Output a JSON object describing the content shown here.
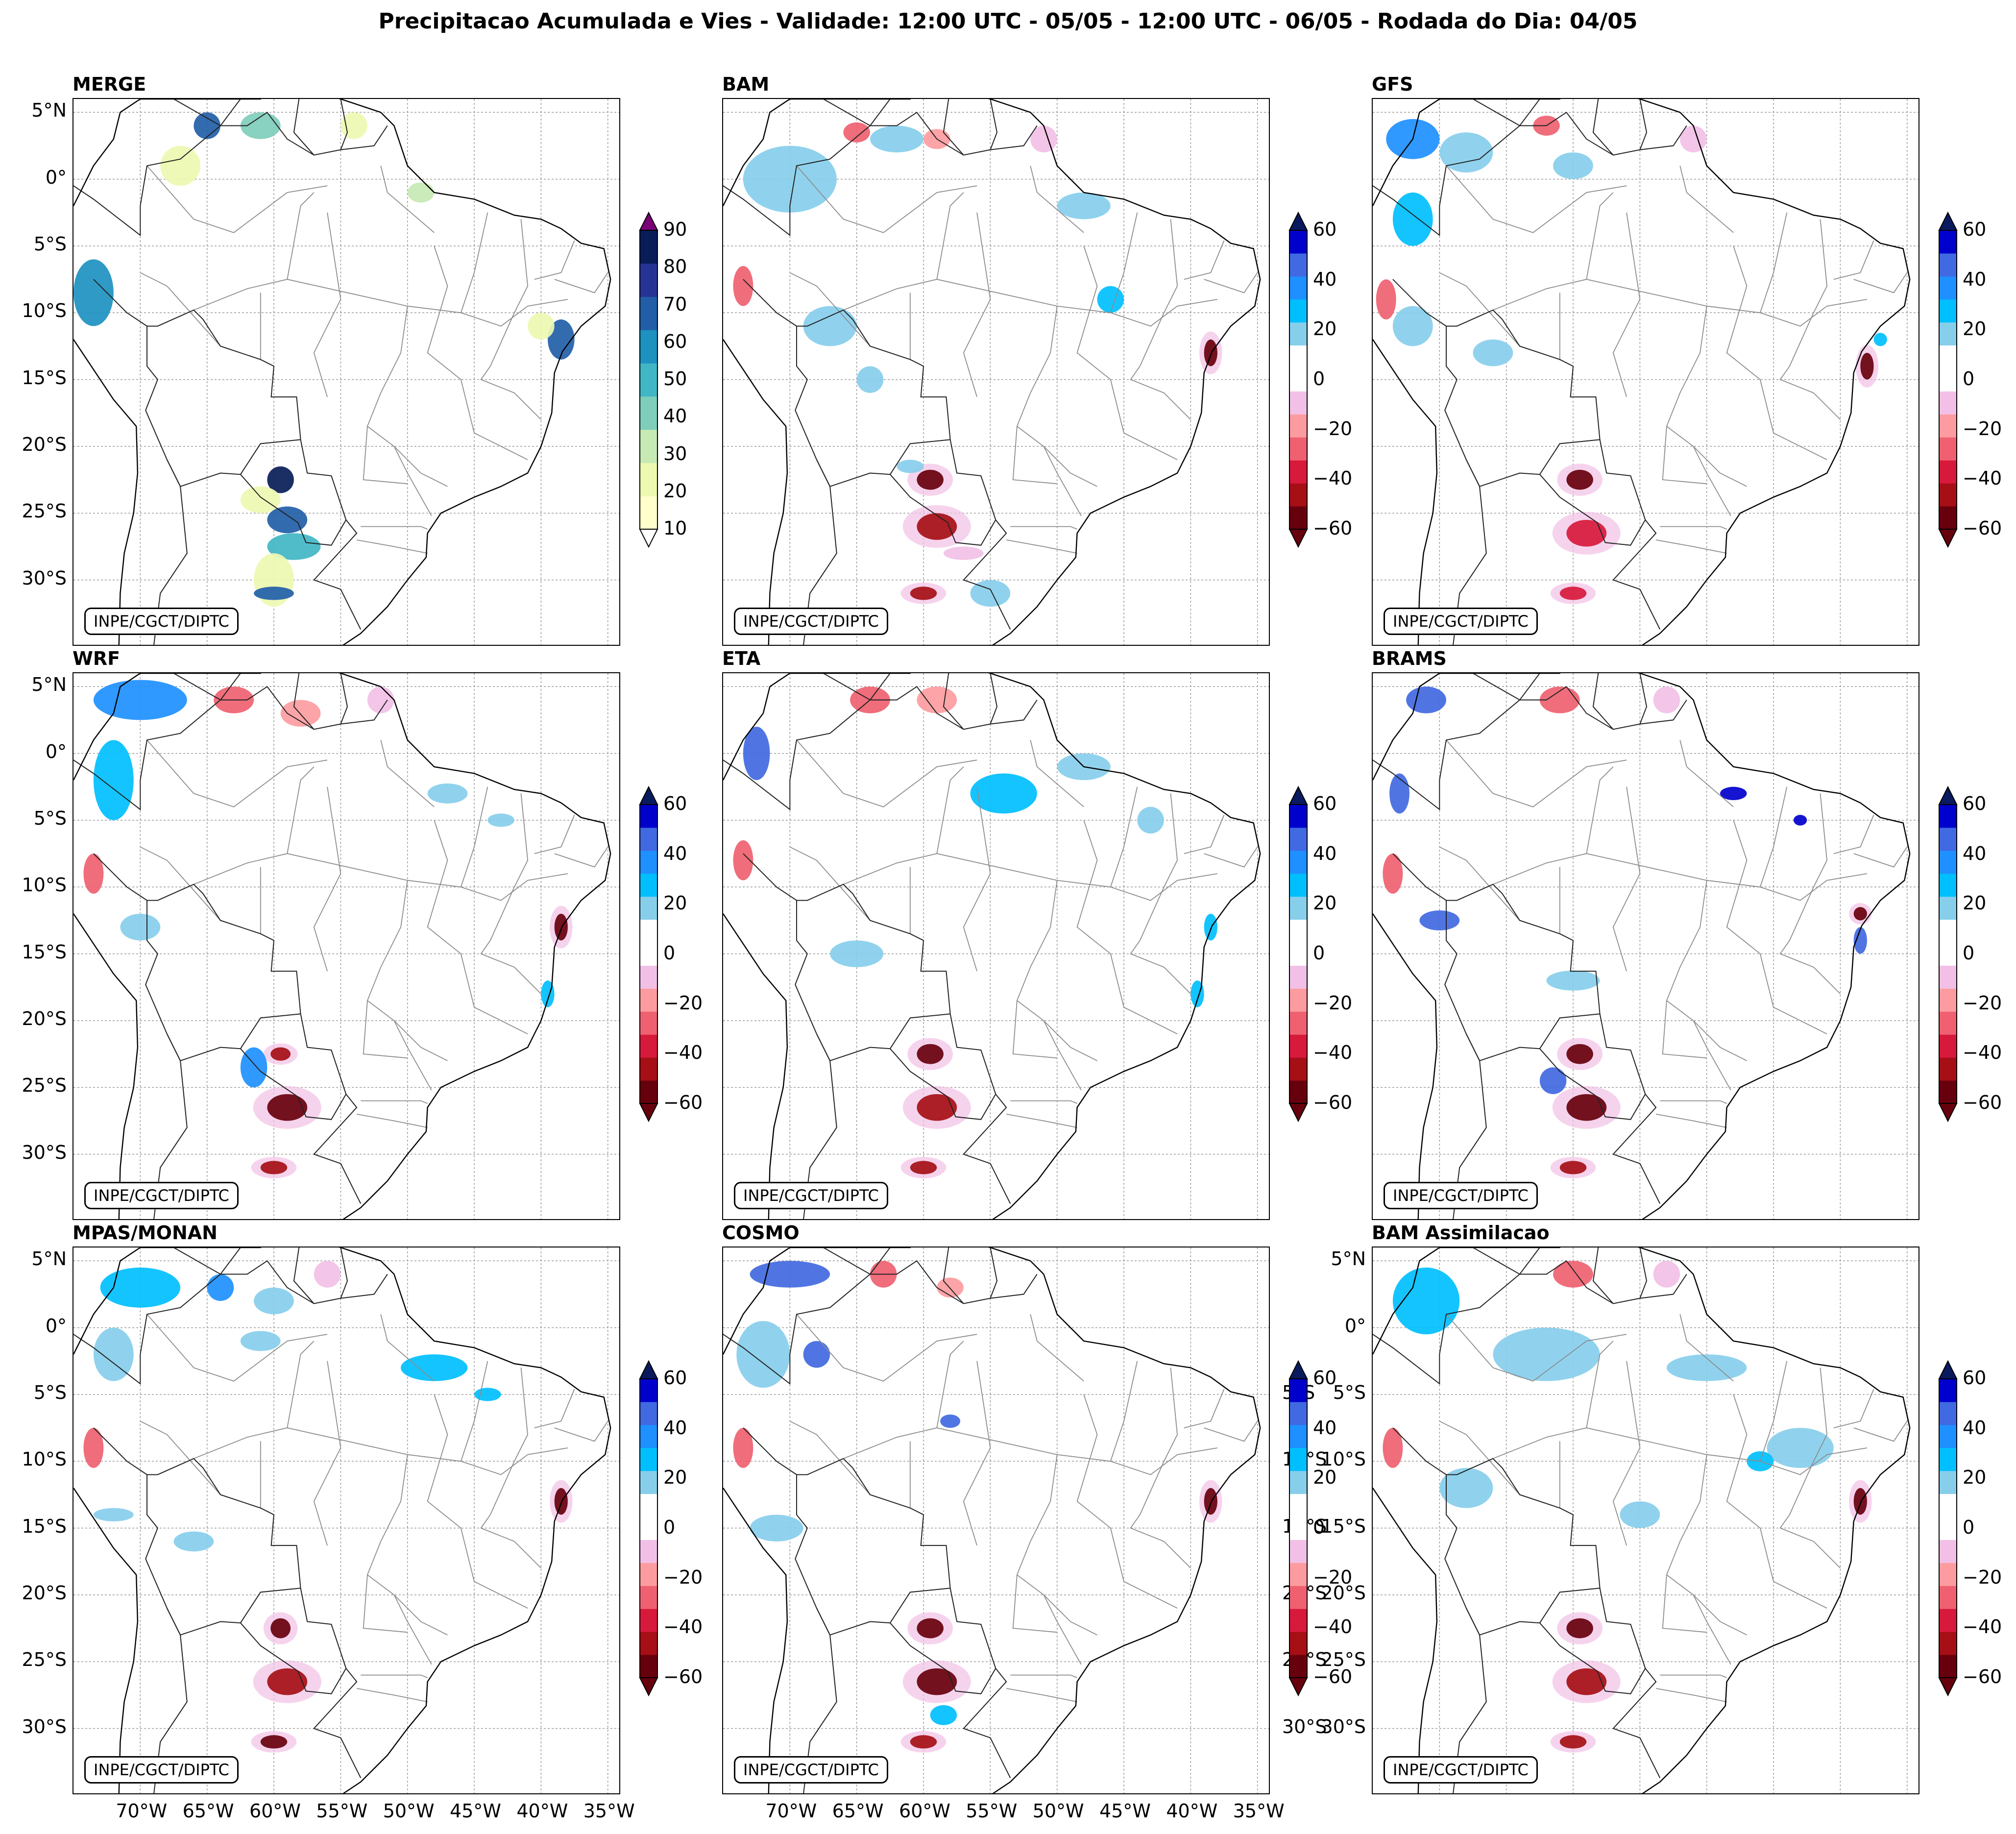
{
  "title": "Precipitacao Acumulada e Vies - Validade: 12:00 UTC - 05/05 - 12:00 UTC - 06/05 - Rodada do Dia: 04/05",
  "credit": "INPE/CGCT/DIPTC",
  "lat_labels": [
    "5°N",
    "0°",
    "5°S",
    "10°S",
    "15°S",
    "20°S",
    "25°S",
    "30°S"
  ],
  "lon_labels": [
    "70°W",
    "65°W",
    "60°W",
    "55°W",
    "50°W",
    "45°W",
    "40°W",
    "35°W"
  ],
  "colorbars": {
    "precip": {
      "ticks": [
        "90",
        "80",
        "70",
        "60",
        "50",
        "40",
        "30",
        "20",
        "10"
      ],
      "colors": [
        "#ffffcc",
        "#edf8b1",
        "#c7e9b4",
        "#7fcdbb",
        "#41b6c4",
        "#1d91c0",
        "#225ea8",
        "#253494",
        "#081d58"
      ],
      "over_color": "#7a0177",
      "under_color": "#ffffff"
    },
    "bias": {
      "ticks": [
        "60",
        "40",
        "20",
        "0",
        "−20",
        "−40",
        "−60"
      ],
      "colors": [
        "#67000d",
        "#a50f15",
        "#d7193c",
        "#ef6170",
        "#fc9ca0",
        "#f2c0e6",
        "#ffffff",
        "#ffffff",
        "#87ceeb",
        "#00bfff",
        "#1e90ff",
        "#4169e1",
        "#0000cd"
      ],
      "over_color": "#0a1a5e",
      "under_color": "#67000d"
    }
  },
  "panels": [
    {
      "name": "MERGE",
      "kind": "precip",
      "blobs": [
        {
          "lon": -73.5,
          "lat": -8.5,
          "w": 3,
          "h": 5,
          "lvl": 5
        },
        {
          "lon": -65,
          "lat": 4,
          "w": 2,
          "h": 2,
          "lvl": 6
        },
        {
          "lon": -61,
          "lat": 4,
          "w": 3,
          "h": 2,
          "lvl": 3
        },
        {
          "lon": -67,
          "lat": 1,
          "w": 3,
          "h": 3,
          "lvl": 1
        },
        {
          "lon": -54,
          "lat": 4,
          "w": 2,
          "h": 2,
          "lvl": 1
        },
        {
          "lon": -38.5,
          "lat": -12,
          "w": 2,
          "h": 3,
          "lvl": 6
        },
        {
          "lon": -40,
          "lat": -11,
          "w": 2,
          "h": 2,
          "lvl": 1
        },
        {
          "lon": -59.5,
          "lat": -22.5,
          "w": 2,
          "h": 2,
          "lvl": 8
        },
        {
          "lon": -59,
          "lat": -25.5,
          "w": 3,
          "h": 2,
          "lvl": 6
        },
        {
          "lon": -61,
          "lat": -24,
          "w": 3,
          "h": 2,
          "lvl": 1
        },
        {
          "lon": -58.5,
          "lat": -27.5,
          "w": 4,
          "h": 2,
          "lvl": 4
        },
        {
          "lon": -60,
          "lat": -30,
          "w": 3,
          "h": 4,
          "lvl": 1
        },
        {
          "lon": -60,
          "lat": -31,
          "w": 3,
          "h": 1,
          "lvl": 6
        },
        {
          "lon": -49,
          "lat": -1,
          "w": 2,
          "h": 1.5,
          "lvl": 2
        }
      ]
    },
    {
      "name": "BAM",
      "kind": "bias",
      "blobs": [
        {
          "lon": -70,
          "lat": 0,
          "w": 7,
          "h": 5,
          "lvl": 8
        },
        {
          "lon": -62,
          "lat": 3,
          "w": 4,
          "h": 2,
          "lvl": 8
        },
        {
          "lon": -65,
          "lat": 3.5,
          "w": 2,
          "h": 1.5,
          "lvl": 3
        },
        {
          "lon": -59,
          "lat": 3,
          "w": 2,
          "h": 1.5,
          "lvl": 4
        },
        {
          "lon": -48,
          "lat": -2,
          "w": 4,
          "h": 2,
          "lvl": 8
        },
        {
          "lon": -46,
          "lat": -9,
          "w": 2,
          "h": 2,
          "lvl": 9
        },
        {
          "lon": -67,
          "lat": -11,
          "w": 4,
          "h": 3,
          "lvl": 8
        },
        {
          "lon": -64,
          "lat": -15,
          "w": 2,
          "h": 2,
          "lvl": 8
        },
        {
          "lon": -73.5,
          "lat": -8,
          "w": 1.5,
          "h": 3,
          "lvl": 3
        },
        {
          "lon": -59.5,
          "lat": -22.5,
          "w": 2,
          "h": 1.5,
          "lvl": 0
        },
        {
          "lon": -59,
          "lat": -26,
          "w": 3,
          "h": 2,
          "lvl": 1
        },
        {
          "lon": -61,
          "lat": -21.5,
          "w": 2,
          "h": 1,
          "lvl": 8
        },
        {
          "lon": -60,
          "lat": -31,
          "w": 2,
          "h": 1,
          "lvl": 1
        },
        {
          "lon": -38.5,
          "lat": -13,
          "w": 1,
          "h": 2,
          "lvl": 0
        },
        {
          "lon": -57,
          "lat": -28,
          "w": 3,
          "h": 1,
          "lvl": 5
        },
        {
          "lon": -55,
          "lat": -31,
          "w": 3,
          "h": 2,
          "lvl": 8
        },
        {
          "lon": -51,
          "lat": 3,
          "w": 2,
          "h": 2,
          "lvl": 5
        }
      ]
    },
    {
      "name": "GFS",
      "kind": "bias",
      "blobs": [
        {
          "lon": -72,
          "lat": 3,
          "w": 4,
          "h": 3,
          "lvl": 10
        },
        {
          "lon": -72,
          "lat": -3,
          "w": 3,
          "h": 4,
          "lvl": 9
        },
        {
          "lon": -68,
          "lat": 2,
          "w": 4,
          "h": 3,
          "lvl": 8
        },
        {
          "lon": -60,
          "lat": 1,
          "w": 3,
          "h": 2,
          "lvl": 8
        },
        {
          "lon": -72,
          "lat": -11,
          "w": 3,
          "h": 3,
          "lvl": 8
        },
        {
          "lon": -66,
          "lat": -13,
          "w": 3,
          "h": 2,
          "lvl": 8
        },
        {
          "lon": -74,
          "lat": -9,
          "w": 1.5,
          "h": 3,
          "lvl": 3
        },
        {
          "lon": -59.5,
          "lat": -22.5,
          "w": 2,
          "h": 1.5,
          "lvl": 0
        },
        {
          "lon": -59,
          "lat": -26.5,
          "w": 3,
          "h": 2,
          "lvl": 2
        },
        {
          "lon": -60,
          "lat": -31,
          "w": 2,
          "h": 1,
          "lvl": 2
        },
        {
          "lon": -38,
          "lat": -14,
          "w": 1,
          "h": 2,
          "lvl": 0
        },
        {
          "lon": -37,
          "lat": -12,
          "w": 1,
          "h": 1,
          "lvl": 9
        },
        {
          "lon": -62,
          "lat": 4,
          "w": 2,
          "h": 1.5,
          "lvl": 3
        },
        {
          "lon": -51,
          "lat": 3,
          "w": 2,
          "h": 2,
          "lvl": 5
        }
      ]
    },
    {
      "name": "WRF",
      "kind": "bias",
      "blobs": [
        {
          "lon": -70,
          "lat": 4,
          "w": 7,
          "h": 3,
          "lvl": 10
        },
        {
          "lon": -72,
          "lat": -2,
          "w": 3,
          "h": 6,
          "lvl": 9
        },
        {
          "lon": -63,
          "lat": 4,
          "w": 3,
          "h": 2,
          "lvl": 3
        },
        {
          "lon": -58,
          "lat": 3,
          "w": 3,
          "h": 2,
          "lvl": 4
        },
        {
          "lon": -47,
          "lat": -3,
          "w": 3,
          "h": 1.5,
          "lvl": 8
        },
        {
          "lon": -43,
          "lat": -5,
          "w": 2,
          "h": 1,
          "lvl": 8
        },
        {
          "lon": -73.5,
          "lat": -9,
          "w": 1.5,
          "h": 3,
          "lvl": 3
        },
        {
          "lon": -61.5,
          "lat": -23.5,
          "w": 2,
          "h": 3,
          "lvl": 10
        },
        {
          "lon": -59.5,
          "lat": -22.5,
          "w": 1.5,
          "h": 1,
          "lvl": 1
        },
        {
          "lon": -59,
          "lat": -26.5,
          "w": 3,
          "h": 2,
          "lvl": 0
        },
        {
          "lon": -60,
          "lat": -31,
          "w": 2,
          "h": 1,
          "lvl": 1
        },
        {
          "lon": -38.5,
          "lat": -13,
          "w": 1,
          "h": 2,
          "lvl": 0
        },
        {
          "lon": -39.5,
          "lat": -18,
          "w": 1,
          "h": 2,
          "lvl": 9
        },
        {
          "lon": -52,
          "lat": 4,
          "w": 2,
          "h": 2,
          "lvl": 5
        },
        {
          "lon": -70,
          "lat": -13,
          "w": 3,
          "h": 2,
          "lvl": 8
        }
      ]
    },
    {
      "name": "ETA",
      "kind": "bias",
      "blobs": [
        {
          "lon": -72.5,
          "lat": 0,
          "w": 2,
          "h": 4,
          "lvl": 11
        },
        {
          "lon": -64,
          "lat": 4,
          "w": 3,
          "h": 2,
          "lvl": 3
        },
        {
          "lon": -59,
          "lat": 4,
          "w": 3,
          "h": 2,
          "lvl": 4
        },
        {
          "lon": -54,
          "lat": -3,
          "w": 5,
          "h": 3,
          "lvl": 9
        },
        {
          "lon": -48,
          "lat": -1,
          "w": 4,
          "h": 2,
          "lvl": 8
        },
        {
          "lon": -43,
          "lat": -5,
          "w": 2,
          "h": 2,
          "lvl": 8
        },
        {
          "lon": -73.5,
          "lat": -8,
          "w": 1.5,
          "h": 3,
          "lvl": 3
        },
        {
          "lon": -59.5,
          "lat": -22.5,
          "w": 2,
          "h": 1.5,
          "lvl": 0
        },
        {
          "lon": -59,
          "lat": -26.5,
          "w": 3,
          "h": 2,
          "lvl": 1
        },
        {
          "lon": -60,
          "lat": -31,
          "w": 2,
          "h": 1,
          "lvl": 1
        },
        {
          "lon": -38.5,
          "lat": -13,
          "w": 1,
          "h": 2,
          "lvl": 9
        },
        {
          "lon": -65,
          "lat": -15,
          "w": 4,
          "h": 2,
          "lvl": 8
        },
        {
          "lon": -39.5,
          "lat": -18,
          "w": 1,
          "h": 2,
          "lvl": 9
        }
      ]
    },
    {
      "name": "BRAMS",
      "kind": "bias",
      "blobs": [
        {
          "lon": -71,
          "lat": 4,
          "w": 3,
          "h": 2,
          "lvl": 11
        },
        {
          "lon": -73,
          "lat": -3,
          "w": 1.5,
          "h": 3,
          "lvl": 11
        },
        {
          "lon": -61,
          "lat": 4,
          "w": 3,
          "h": 2,
          "lvl": 3
        },
        {
          "lon": -53,
          "lat": 4,
          "w": 2,
          "h": 2,
          "lvl": 5
        },
        {
          "lon": -48,
          "lat": -3,
          "w": 2,
          "h": 1,
          "lvl": 12
        },
        {
          "lon": -43,
          "lat": -5,
          "w": 1,
          "h": 0.8,
          "lvl": 12
        },
        {
          "lon": -70,
          "lat": -12.5,
          "w": 3,
          "h": 1.5,
          "lvl": 11
        },
        {
          "lon": -60,
          "lat": -17,
          "w": 4,
          "h": 1.5,
          "lvl": 8
        },
        {
          "lon": -38.5,
          "lat": -14,
          "w": 1,
          "h": 2,
          "lvl": 11
        },
        {
          "lon": -73.5,
          "lat": -9,
          "w": 1.5,
          "h": 3,
          "lvl": 3
        },
        {
          "lon": -59.5,
          "lat": -22.5,
          "w": 2,
          "h": 1.5,
          "lvl": 0
        },
        {
          "lon": -59,
          "lat": -26.5,
          "w": 3,
          "h": 2,
          "lvl": 0
        },
        {
          "lon": -61.5,
          "lat": -24.5,
          "w": 2,
          "h": 2,
          "lvl": 11
        },
        {
          "lon": -60,
          "lat": -31,
          "w": 2,
          "h": 1,
          "lvl": 1
        },
        {
          "lon": -38.5,
          "lat": -12,
          "w": 1,
          "h": 1,
          "lvl": 0
        }
      ]
    },
    {
      "name": "MPAS/MONAN",
      "kind": "bias",
      "blobs": [
        {
          "lon": -70,
          "lat": 3,
          "w": 6,
          "h": 3,
          "lvl": 9
        },
        {
          "lon": -72,
          "lat": -2,
          "w": 3,
          "h": 4,
          "lvl": 8
        },
        {
          "lon": -64,
          "lat": 3,
          "w": 2,
          "h": 2,
          "lvl": 10
        },
        {
          "lon": -60,
          "lat": 2,
          "w": 3,
          "h": 2,
          "lvl": 8
        },
        {
          "lon": -61,
          "lat": -1,
          "w": 3,
          "h": 1.5,
          "lvl": 8
        },
        {
          "lon": -56,
          "lat": 4,
          "w": 2,
          "h": 2,
          "lvl": 5
        },
        {
          "lon": -48,
          "lat": -3,
          "w": 5,
          "h": 2,
          "lvl": 9
        },
        {
          "lon": -44,
          "lat": -5,
          "w": 2,
          "h": 1,
          "lvl": 9
        },
        {
          "lon": -73.5,
          "lat": -9,
          "w": 1.5,
          "h": 3,
          "lvl": 3
        },
        {
          "lon": -66,
          "lat": -16,
          "w": 3,
          "h": 1.5,
          "lvl": 8
        },
        {
          "lon": -59.5,
          "lat": -22.5,
          "w": 1.5,
          "h": 1.5,
          "lvl": 0
        },
        {
          "lon": -59,
          "lat": -26.5,
          "w": 3,
          "h": 2,
          "lvl": 1
        },
        {
          "lon": -60,
          "lat": -31,
          "w": 2,
          "h": 1,
          "lvl": 0
        },
        {
          "lon": -38.5,
          "lat": -13,
          "w": 1,
          "h": 2,
          "lvl": 0
        },
        {
          "lon": -72,
          "lat": -14,
          "w": 3,
          "h": 1,
          "lvl": 8
        }
      ]
    },
    {
      "name": "COSMO",
      "kind": "bias",
      "blobs": [
        {
          "lon": -70,
          "lat": 4,
          "w": 6,
          "h": 2,
          "lvl": 11
        },
        {
          "lon": -72,
          "lat": -2,
          "w": 4,
          "h": 5,
          "lvl": 8
        },
        {
          "lon": -68,
          "lat": -2,
          "w": 2,
          "h": 2,
          "lvl": 11
        },
        {
          "lon": -63,
          "lat": 4,
          "w": 2,
          "h": 2,
          "lvl": 3
        },
        {
          "lon": -58,
          "lat": 3,
          "w": 2,
          "h": 1.5,
          "lvl": 4
        },
        {
          "lon": -58,
          "lat": -7,
          "w": 1.5,
          "h": 1,
          "lvl": 11
        },
        {
          "lon": -71,
          "lat": -15,
          "w": 4,
          "h": 2,
          "lvl": 8
        },
        {
          "lon": -73.5,
          "lat": -9,
          "w": 1.5,
          "h": 3,
          "lvl": 3
        },
        {
          "lon": -59.5,
          "lat": -22.5,
          "w": 2,
          "h": 1.5,
          "lvl": 0
        },
        {
          "lon": -59,
          "lat": -26.5,
          "w": 3,
          "h": 2,
          "lvl": 0
        },
        {
          "lon": -60,
          "lat": -31,
          "w": 2,
          "h": 1,
          "lvl": 1
        },
        {
          "lon": -38.5,
          "lat": -13,
          "w": 1,
          "h": 2,
          "lvl": 0
        },
        {
          "lon": -58.5,
          "lat": -29,
          "w": 2,
          "h": 1.5,
          "lvl": 9
        }
      ]
    },
    {
      "name": "BAM Assimilacao",
      "kind": "bias",
      "blobs": [
        {
          "lon": -71,
          "lat": 2,
          "w": 5,
          "h": 5,
          "lvl": 9
        },
        {
          "lon": -62,
          "lat": -2,
          "w": 8,
          "h": 4,
          "lvl": 8
        },
        {
          "lon": -50,
          "lat": -3,
          "w": 6,
          "h": 2,
          "lvl": 8
        },
        {
          "lon": -43,
          "lat": -9,
          "w": 5,
          "h": 3,
          "lvl": 8
        },
        {
          "lon": -46,
          "lat": -10,
          "w": 2,
          "h": 1.5,
          "lvl": 9
        },
        {
          "lon": -68,
          "lat": -12,
          "w": 4,
          "h": 3,
          "lvl": 8
        },
        {
          "lon": -60,
          "lat": 4,
          "w": 3,
          "h": 2,
          "lvl": 3
        },
        {
          "lon": -53,
          "lat": 4,
          "w": 2,
          "h": 2,
          "lvl": 5
        },
        {
          "lon": -73.5,
          "lat": -9,
          "w": 1.5,
          "h": 3,
          "lvl": 3
        },
        {
          "lon": -59.5,
          "lat": -22.5,
          "w": 2,
          "h": 1.5,
          "lvl": 0
        },
        {
          "lon": -59,
          "lat": -26.5,
          "w": 3,
          "h": 2,
          "lvl": 1
        },
        {
          "lon": -60,
          "lat": -31,
          "w": 2,
          "h": 1,
          "lvl": 1
        },
        {
          "lon": -38.5,
          "lat": -13,
          "w": 1,
          "h": 2,
          "lvl": 0
        },
        {
          "lon": -55,
          "lat": -14,
          "w": 3,
          "h": 2,
          "lvl": 8
        }
      ]
    }
  ]
}
